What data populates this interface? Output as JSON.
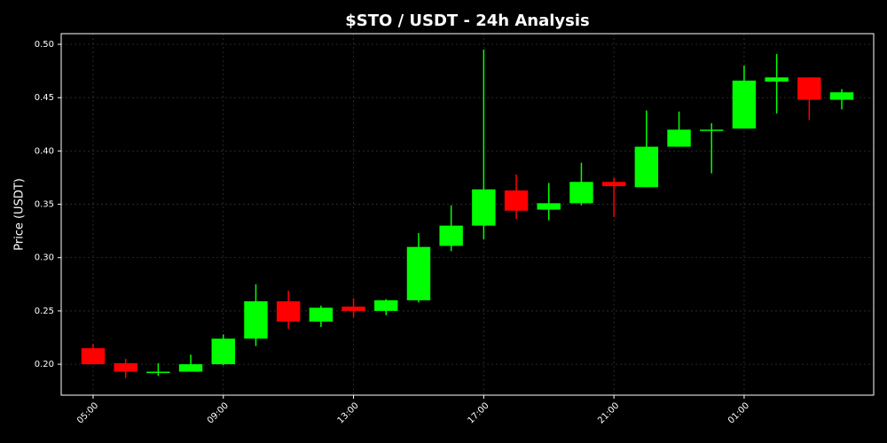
{
  "chart_data": {
    "type": "candlestick",
    "title": "$STO / USDT - 24h Analysis",
    "y_label": "Price (USDT)",
    "categories": [
      "05:00",
      null,
      null,
      null,
      "09:00",
      null,
      null,
      null,
      "13:00",
      null,
      null,
      null,
      "17:00",
      null,
      null,
      null,
      "21:00",
      null,
      null,
      null,
      "01:00",
      null,
      null,
      null
    ],
    "open": [
      0.215,
      0.201,
      0.192,
      0.193,
      0.2,
      0.224,
      0.259,
      0.24,
      0.254,
      0.25,
      0.26,
      0.311,
      0.33,
      0.363,
      0.345,
      0.351,
      0.371,
      0.366,
      0.404,
      0.42,
      0.421,
      0.465,
      0.469,
      0.448
    ],
    "high": [
      0.219,
      0.205,
      0.201,
      0.209,
      0.228,
      0.275,
      0.269,
      0.255,
      0.262,
      0.261,
      0.323,
      0.349,
      0.495,
      0.378,
      0.37,
      0.389,
      0.375,
      0.438,
      0.437,
      0.426,
      0.48,
      0.491,
      0.469,
      0.458
    ],
    "low": [
      0.2,
      0.187,
      0.189,
      0.193,
      0.199,
      0.217,
      0.233,
      0.235,
      0.244,
      0.246,
      0.258,
      0.306,
      0.317,
      0.336,
      0.335,
      0.349,
      0.338,
      0.366,
      0.404,
      0.379,
      0.421,
      0.435,
      0.429,
      0.439
    ],
    "close": [
      0.2,
      0.193,
      0.193,
      0.2,
      0.224,
      0.259,
      0.24,
      0.253,
      0.25,
      0.26,
      0.31,
      0.33,
      0.364,
      0.344,
      0.351,
      0.371,
      0.367,
      0.404,
      0.42,
      0.42,
      0.466,
      0.469,
      0.448,
      0.455
    ],
    "up_color": "#00ff00",
    "down_color": "#ff0000",
    "ylim": [
      0.171,
      0.51
    ],
    "yticks": [
      {
        "value": 0.2,
        "label": "0.20"
      },
      0.25,
      {
        "value": 0.3,
        "label": "0.30"
      },
      0.35,
      {
        "value": 0.4,
        "label": "0.40"
      },
      0.45,
      {
        "value": 0.5,
        "label": "0.50"
      }
    ],
    "grid": true
  }
}
